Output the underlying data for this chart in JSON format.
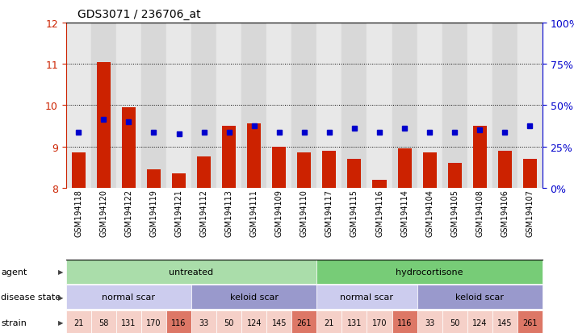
{
  "title": "GDS3071 / 236706_at",
  "samples": [
    "GSM194118",
    "GSM194120",
    "GSM194122",
    "GSM194119",
    "GSM194121",
    "GSM194112",
    "GSM194113",
    "GSM194111",
    "GSM194109",
    "GSM194110",
    "GSM194117",
    "GSM194115",
    "GSM194116",
    "GSM194114",
    "GSM194104",
    "GSM194105",
    "GSM194108",
    "GSM194106",
    "GSM194107"
  ],
  "counts": [
    8.85,
    11.05,
    9.95,
    8.45,
    8.35,
    8.75,
    9.5,
    9.55,
    9.0,
    8.85,
    8.9,
    8.7,
    8.2,
    8.95,
    8.85,
    8.6,
    9.5,
    8.9,
    8.7
  ],
  "percentile_values": [
    9.35,
    9.65,
    9.6,
    9.35,
    9.3,
    9.35,
    9.35,
    9.5,
    9.35,
    9.35,
    9.35,
    9.45,
    9.35,
    9.45,
    9.35,
    9.35,
    9.4,
    9.35,
    9.5
  ],
  "ylim": [
    8.0,
    12.0
  ],
  "yticks_left": [
    8,
    9,
    10,
    11,
    12
  ],
  "yticks_right_vals": [
    8.0,
    9.0,
    10.0,
    11.0,
    12.0
  ],
  "yticks_right_labels": [
    "0%",
    "25%",
    "50%",
    "75%",
    "100%"
  ],
  "bar_color": "#cc2200",
  "dot_color": "#0000cc",
  "agent_groups": [
    {
      "label": "untreated",
      "start": 0,
      "end": 10,
      "color": "#aaddaa"
    },
    {
      "label": "hydrocortisone",
      "start": 10,
      "end": 19,
      "color": "#77cc77"
    }
  ],
  "disease_groups": [
    {
      "label": "normal scar",
      "start": 0,
      "end": 5,
      "color": "#ccccee"
    },
    {
      "label": "keloid scar",
      "start": 5,
      "end": 10,
      "color": "#9999cc"
    },
    {
      "label": "normal scar",
      "start": 10,
      "end": 14,
      "color": "#ccccee"
    },
    {
      "label": "keloid scar",
      "start": 14,
      "end": 19,
      "color": "#9999cc"
    }
  ],
  "strains": [
    {
      "label": "21",
      "idx": 0,
      "highlight": false
    },
    {
      "label": "58",
      "idx": 1,
      "highlight": false
    },
    {
      "label": "131",
      "idx": 2,
      "highlight": false
    },
    {
      "label": "170",
      "idx": 3,
      "highlight": false
    },
    {
      "label": "116",
      "idx": 4,
      "highlight": true
    },
    {
      "label": "33",
      "idx": 5,
      "highlight": false
    },
    {
      "label": "50",
      "idx": 6,
      "highlight": false
    },
    {
      "label": "124",
      "idx": 7,
      "highlight": false
    },
    {
      "label": "145",
      "idx": 8,
      "highlight": false
    },
    {
      "label": "261",
      "idx": 9,
      "highlight": true
    },
    {
      "label": "21",
      "idx": 10,
      "highlight": false
    },
    {
      "label": "131",
      "idx": 11,
      "highlight": false
    },
    {
      "label": "170",
      "idx": 12,
      "highlight": false
    },
    {
      "label": "116",
      "idx": 13,
      "highlight": true
    },
    {
      "label": "33",
      "idx": 14,
      "highlight": false
    },
    {
      "label": "50",
      "idx": 15,
      "highlight": false
    },
    {
      "label": "124",
      "idx": 16,
      "highlight": false
    },
    {
      "label": "145",
      "idx": 17,
      "highlight": false
    },
    {
      "label": "261",
      "idx": 18,
      "highlight": true
    }
  ],
  "strain_normal_color": "#f5d0c8",
  "strain_highlight_color": "#dd7766",
  "col_bg_even": "#e8e8e8",
  "col_bg_odd": "#d8d8d8"
}
